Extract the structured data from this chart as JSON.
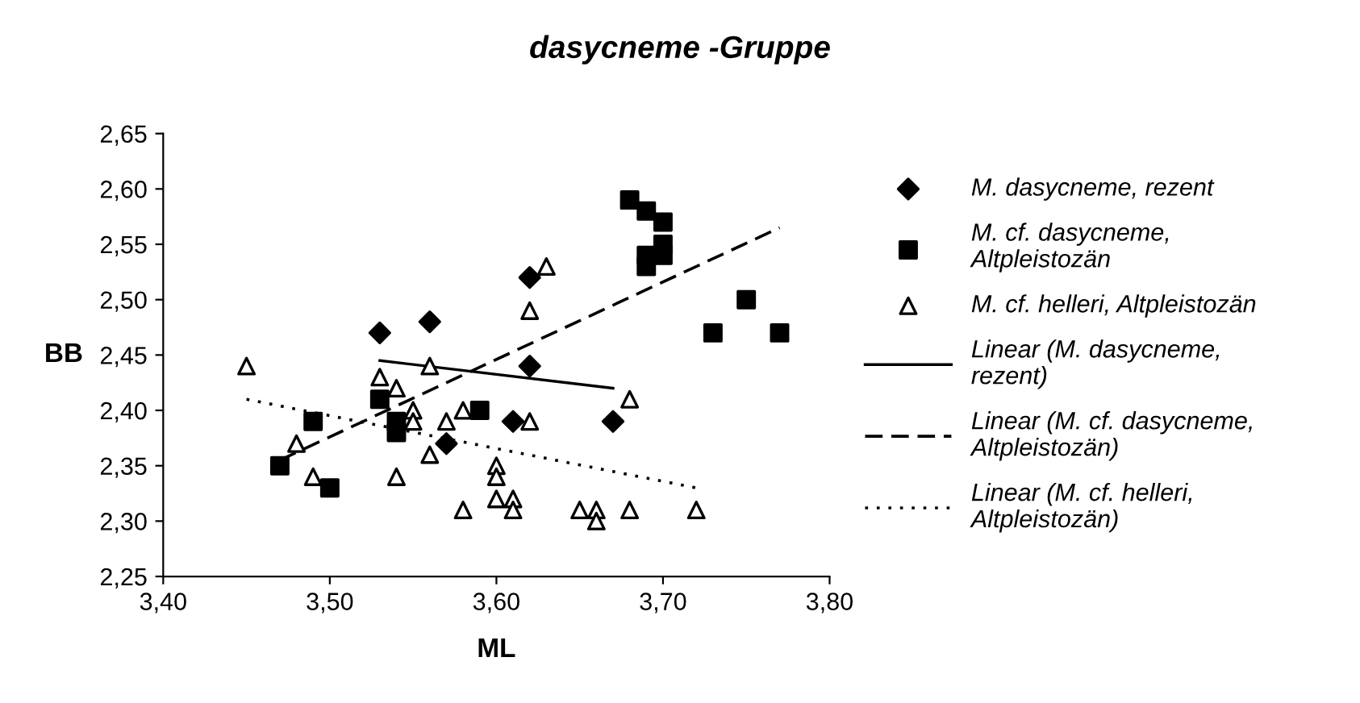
{
  "chart_data": {
    "type": "scatter",
    "title": "dasycneme -Gruppe",
    "xlabel": "ML",
    "ylabel": "BB",
    "xlim": [
      3.4,
      3.8
    ],
    "ylim": [
      2.25,
      2.65
    ],
    "xticks": [
      {
        "value": 3.4,
        "label": "3,40"
      },
      {
        "value": 3.5,
        "label": "3,50"
      },
      {
        "value": 3.6,
        "label": "3,60"
      },
      {
        "value": 3.7,
        "label": "3,70"
      },
      {
        "value": 3.8,
        "label": "3,80"
      }
    ],
    "yticks": [
      {
        "value": 2.25,
        "label": "2,25"
      },
      {
        "value": 2.3,
        "label": "2,30"
      },
      {
        "value": 2.35,
        "label": "2,35"
      },
      {
        "value": 2.4,
        "label": "2,40"
      },
      {
        "value": 2.45,
        "label": "2,45"
      },
      {
        "value": 2.5,
        "label": "2,50"
      },
      {
        "value": 2.55,
        "label": "2,55"
      },
      {
        "value": 2.6,
        "label": "2,60"
      },
      {
        "value": 2.65,
        "label": "2,65"
      }
    ],
    "grid": false,
    "legend": "right",
    "series": [
      {
        "name": "M. dasycneme, rezent",
        "marker": "diamond",
        "color": "#000000",
        "x": [
          3.53,
          3.56,
          3.57,
          3.61,
          3.62,
          3.62,
          3.67
        ],
        "values": [
          2.47,
          2.48,
          2.37,
          2.39,
          2.52,
          2.44,
          2.39
        ]
      },
      {
        "name": "M. cf. dasycneme,\nAltpleistozän",
        "marker": "square",
        "color": "#000000",
        "x": [
          3.47,
          3.49,
          3.5,
          3.53,
          3.54,
          3.54,
          3.59,
          3.68,
          3.69,
          3.7,
          3.69,
          3.69,
          3.7,
          3.7,
          3.73,
          3.75,
          3.77
        ],
        "values": [
          2.35,
          2.39,
          2.33,
          2.41,
          2.39,
          2.38,
          2.4,
          2.59,
          2.58,
          2.57,
          2.54,
          2.53,
          2.55,
          2.54,
          2.47,
          2.5,
          2.47
        ]
      },
      {
        "name": "M. cf. helleri, Altpleistozän",
        "marker": "triangle",
        "color": "#000000",
        "x": [
          3.45,
          3.48,
          3.49,
          3.53,
          3.54,
          3.54,
          3.55,
          3.55,
          3.56,
          3.56,
          3.57,
          3.58,
          3.58,
          3.6,
          3.6,
          3.6,
          3.61,
          3.61,
          3.62,
          3.62,
          3.63,
          3.65,
          3.66,
          3.66,
          3.68,
          3.68,
          3.72
        ],
        "values": [
          2.44,
          2.37,
          2.34,
          2.43,
          2.42,
          2.34,
          2.4,
          2.39,
          2.44,
          2.36,
          2.39,
          2.4,
          2.31,
          2.35,
          2.34,
          2.32,
          2.32,
          2.31,
          2.39,
          2.49,
          2.53,
          2.31,
          2.31,
          2.3,
          2.31,
          2.41,
          2.31
        ]
      },
      {
        "name": "Linear (M. dasycneme,\nrezent)",
        "type": "line",
        "marker": "none",
        "line_style": "solid",
        "color": "#000000",
        "x": [
          3.53,
          3.67
        ],
        "values": [
          2.445,
          2.42
        ]
      },
      {
        "name": "Linear (M. cf. dasycneme,\nAltpleistozän)",
        "type": "line",
        "marker": "none",
        "line_style": "dashed",
        "color": "#000000",
        "x": [
          3.47,
          3.77
        ],
        "values": [
          2.355,
          2.565
        ]
      },
      {
        "name": "Linear (M. cf. helleri,\nAltpleistozän)",
        "type": "line",
        "marker": "none",
        "line_style": "dotted",
        "color": "#000000",
        "x": [
          3.45,
          3.72
        ],
        "values": [
          2.41,
          2.33
        ]
      }
    ]
  }
}
